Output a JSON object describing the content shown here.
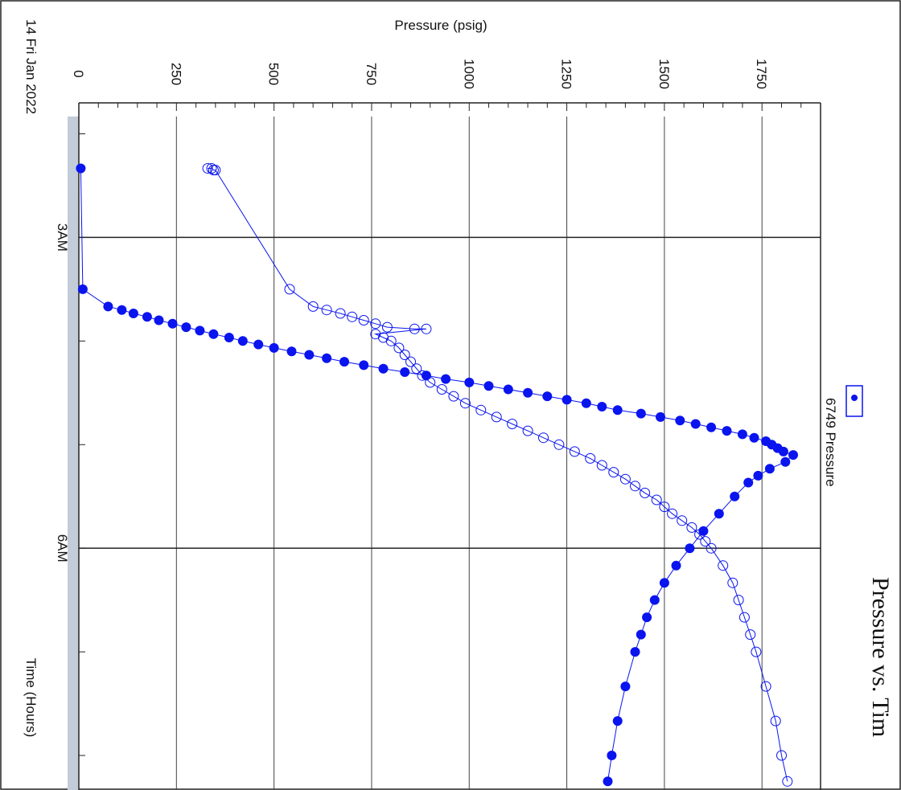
{
  "chart_data": {
    "type": "scatter",
    "title": "Pressure vs. Tim",
    "xlabel": "Time (Hours)",
    "ylabel": "Pressure (psig)",
    "date_label": "14 Fri Jan 2022",
    "xlim": [
      "01:50",
      "08:20"
    ],
    "ylim": [
      0,
      1900
    ],
    "x_ticks": [
      {
        "time": "03:00",
        "label": "3AM"
      },
      {
        "time": "06:00",
        "label": "6AM"
      }
    ],
    "y_ticks": [
      0,
      250,
      500,
      750,
      1000,
      1250,
      1500,
      1750
    ],
    "grid": true,
    "legend": {
      "position": "top-right",
      "entries": [
        "6749 Pressure"
      ]
    },
    "colors": {
      "series": "#0a14ee",
      "band": "#c3ccd9",
      "grid": "#333333"
    },
    "series": [
      {
        "name": "6749 Pressure",
        "marker": "filled",
        "points": [
          [
            "02:20",
            5
          ],
          [
            "03:30",
            10
          ],
          [
            "03:40",
            75
          ],
          [
            "03:42",
            110
          ],
          [
            "03:44",
            140
          ],
          [
            "03:46",
            175
          ],
          [
            "03:48",
            205
          ],
          [
            "03:50",
            240
          ],
          [
            "03:52",
            275
          ],
          [
            "03:54",
            310
          ],
          [
            "03:56",
            345
          ],
          [
            "03:58",
            385
          ],
          [
            "04:00",
            420
          ],
          [
            "04:02",
            460
          ],
          [
            "04:04",
            500
          ],
          [
            "04:06",
            545
          ],
          [
            "04:08",
            590
          ],
          [
            "04:10",
            635
          ],
          [
            "04:12",
            680
          ],
          [
            "04:14",
            730
          ],
          [
            "04:16",
            780
          ],
          [
            "04:18",
            835
          ],
          [
            "04:20",
            890
          ],
          [
            "04:22",
            940
          ],
          [
            "04:24",
            1000
          ],
          [
            "04:26",
            1050
          ],
          [
            "04:28",
            1100
          ],
          [
            "04:30",
            1150
          ],
          [
            "04:32",
            1200
          ],
          [
            "04:34",
            1250
          ],
          [
            "04:36",
            1300
          ],
          [
            "04:38",
            1340
          ],
          [
            "04:40",
            1380
          ],
          [
            "04:42",
            1440
          ],
          [
            "04:44",
            1490
          ],
          [
            "04:46",
            1540
          ],
          [
            "04:48",
            1580
          ],
          [
            "04:50",
            1620
          ],
          [
            "04:52",
            1660
          ],
          [
            "04:54",
            1700
          ],
          [
            "04:56",
            1730
          ],
          [
            "04:58",
            1760
          ],
          [
            "05:00",
            1775
          ],
          [
            "05:02",
            1790
          ],
          [
            "05:04",
            1805
          ],
          [
            "05:06",
            1830
          ],
          [
            "05:10",
            1810
          ],
          [
            "05:14",
            1770
          ],
          [
            "05:18",
            1740
          ],
          [
            "05:22",
            1715
          ],
          [
            "05:30",
            1680
          ],
          [
            "05:40",
            1640
          ],
          [
            "05:50",
            1600
          ],
          [
            "06:00",
            1565
          ],
          [
            "06:10",
            1530
          ],
          [
            "06:20",
            1500
          ],
          [
            "06:30",
            1475
          ],
          [
            "06:40",
            1455
          ],
          [
            "06:50",
            1440
          ],
          [
            "07:00",
            1425
          ],
          [
            "07:20",
            1400
          ],
          [
            "07:40",
            1380
          ],
          [
            "08:00",
            1365
          ],
          [
            "08:15",
            1355
          ]
        ]
      },
      {
        "marker": "open",
        "points": [
          [
            "02:20",
            330
          ],
          [
            "02:20",
            340
          ],
          [
            "02:21",
            345
          ],
          [
            "02:21",
            350
          ],
          [
            "03:30",
            540
          ],
          [
            "03:40",
            600
          ],
          [
            "03:42",
            635
          ],
          [
            "03:44",
            670
          ],
          [
            "03:46",
            700
          ],
          [
            "03:48",
            730
          ],
          [
            "03:50",
            760
          ],
          [
            "03:52",
            790
          ],
          [
            "03:53",
            860
          ],
          [
            "03:53",
            890
          ],
          [
            "03:56",
            760
          ],
          [
            "03:58",
            780
          ],
          [
            "04:00",
            800
          ],
          [
            "04:04",
            820
          ],
          [
            "04:08",
            835
          ],
          [
            "04:12",
            850
          ],
          [
            "04:16",
            865
          ],
          [
            "04:20",
            880
          ],
          [
            "04:24",
            900
          ],
          [
            "04:28",
            930
          ],
          [
            "04:32",
            960
          ],
          [
            "04:36",
            990
          ],
          [
            "04:40",
            1030
          ],
          [
            "04:44",
            1070
          ],
          [
            "04:48",
            1110
          ],
          [
            "04:52",
            1150
          ],
          [
            "04:56",
            1190
          ],
          [
            "05:00",
            1230
          ],
          [
            "05:04",
            1270
          ],
          [
            "05:08",
            1310
          ],
          [
            "05:12",
            1340
          ],
          [
            "05:16",
            1370
          ],
          [
            "05:20",
            1400
          ],
          [
            "05:24",
            1425
          ],
          [
            "05:28",
            1450
          ],
          [
            "05:32",
            1480
          ],
          [
            "05:36",
            1500
          ],
          [
            "05:40",
            1520
          ],
          [
            "05:44",
            1545
          ],
          [
            "05:48",
            1570
          ],
          [
            "05:52",
            1590
          ],
          [
            "05:56",
            1605
          ],
          [
            "06:00",
            1620
          ],
          [
            "06:10",
            1650
          ],
          [
            "06:20",
            1675
          ],
          [
            "06:30",
            1690
          ],
          [
            "06:40",
            1705
          ],
          [
            "06:50",
            1720
          ],
          [
            "07:00",
            1735
          ],
          [
            "07:20",
            1760
          ],
          [
            "07:40",
            1785
          ],
          [
            "08:00",
            1800
          ],
          [
            "08:15",
            1815
          ]
        ]
      }
    ]
  }
}
